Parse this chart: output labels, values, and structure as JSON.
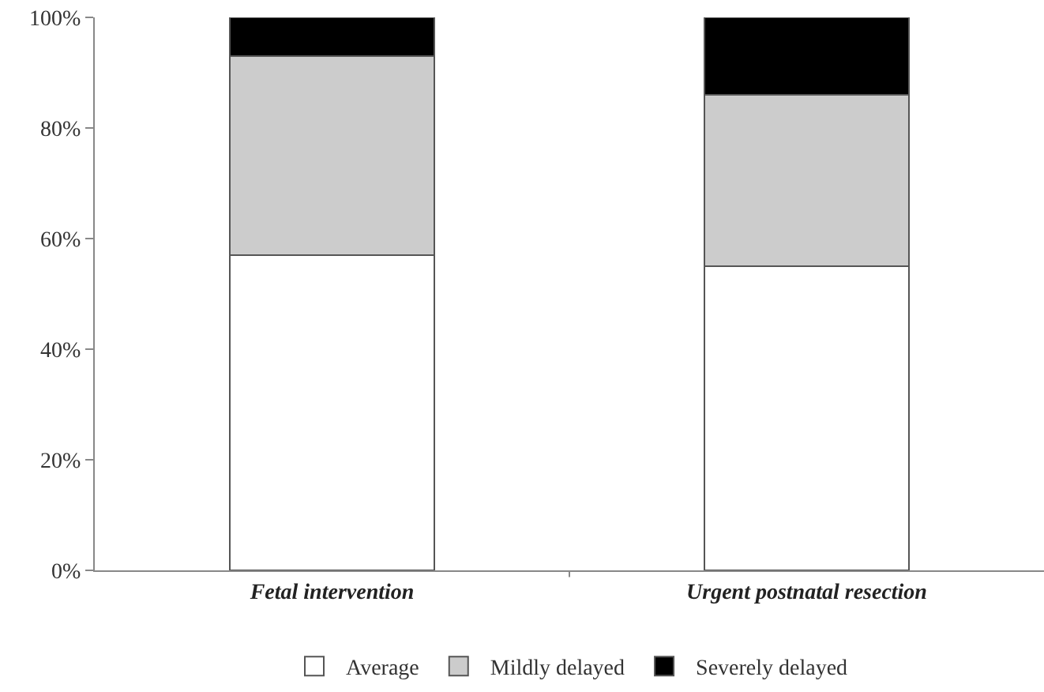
{
  "chart_data": {
    "type": "bar",
    "stacked": true,
    "categories": [
      "Fetal intervention",
      "Urgent postnatal resection"
    ],
    "series": [
      {
        "name": "Average",
        "color": "#ffffff",
        "values": [
          57,
          55
        ]
      },
      {
        "name": "Mildly delayed",
        "color": "#cccccc",
        "values": [
          36,
          31
        ]
      },
      {
        "name": "Severely delayed",
        "color": "#000000",
        "values": [
          7,
          14
        ]
      }
    ],
    "ylim": [
      0,
      100
    ],
    "yticks": [
      {
        "value": 0,
        "label": "0%"
      },
      {
        "value": 20,
        "label": "20%"
      },
      {
        "value": 40,
        "label": "40%"
      },
      {
        "value": 60,
        "label": "60%"
      },
      {
        "value": 80,
        "label": "80%"
      },
      {
        "value": 100,
        "label": "100%"
      }
    ],
    "grid": false,
    "legend": "bottom"
  }
}
